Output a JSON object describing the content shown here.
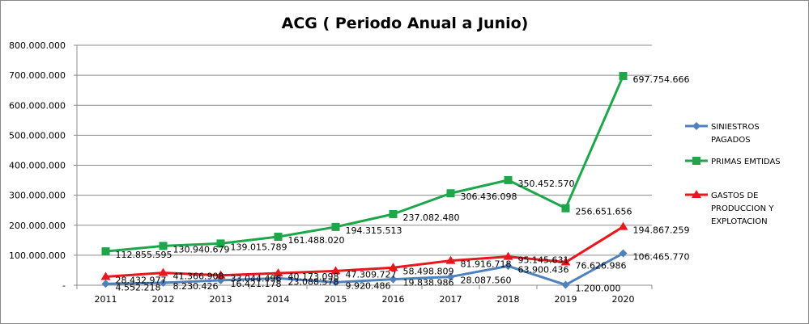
{
  "chart_data": {
    "type": "line",
    "title": "ACG ( Periodo Anual a Junio)",
    "xlabel": "",
    "ylabel": "",
    "categories": [
      "2011",
      "2012",
      "2013",
      "2014",
      "2015",
      "2016",
      "2017",
      "2018",
      "2019",
      "2020"
    ],
    "ylim": [
      0,
      800000000
    ],
    "yticks": [
      {
        "value": 0,
        "label": "-"
      },
      {
        "value": 100000000,
        "label": "100.000.000"
      },
      {
        "value": 200000000,
        "label": "200.000.000"
      },
      {
        "value": 300000000,
        "label": "300.000.000"
      },
      {
        "value": 400000000,
        "label": "400.000.000"
      },
      {
        "value": 500000000,
        "label": "500.000.000"
      },
      {
        "value": 600000000,
        "label": "600.000.000"
      },
      {
        "value": 700000000,
        "label": "700.000.000"
      },
      {
        "value": 800000000,
        "label": "800.000.000"
      }
    ],
    "grid": true,
    "legend_position": "right",
    "series": [
      {
        "name": "SINIESTROS PAGADOS",
        "legend_lines": [
          "SINIESTROS",
          "PAGADOS"
        ],
        "color": "#4F81BD",
        "marker": "diamond",
        "values": [
          4552218,
          8230426,
          16421178,
          23088578,
          9920486,
          19838986,
          28087560,
          63900436,
          1200000,
          106465770
        ],
        "labels": [
          "4.552.218",
          "8.230.426",
          "16.421.178",
          "23.088.578",
          "9.920.486",
          "19.838.986",
          "28.087.560",
          "63.900.436",
          "1.200.000",
          "106.465.770"
        ]
      },
      {
        "name": "PRIMAS EMTIDAS",
        "legend_lines": [
          "PRIMAS EMTIDAS"
        ],
        "color": "#1EA64A",
        "marker": "square",
        "values": [
          112855595,
          130940679,
          139015789,
          161488020,
          194315513,
          237082480,
          306436098,
          350452570,
          256651656,
          697754666
        ],
        "labels": [
          "112.855.595",
          "130.940.679",
          "139.015.789",
          "161.488.020",
          "194.315.513",
          "237.082.480",
          "306.436.098",
          "350.452.570",
          "256.651.656",
          "697.754.666"
        ]
      },
      {
        "name": "GASTOS DE PRODUCCION Y EXPLOTACION",
        "legend_lines": [
          "GASTOS DE",
          "PRODUCCION Y",
          "EXPLOTACION"
        ],
        "color": "#E8161D",
        "marker": "triangle",
        "values": [
          28432977,
          41366908,
          33044496,
          40173098,
          47309727,
          58498809,
          81916718,
          95145631,
          76626986,
          194867259
        ],
        "labels": [
          "28.432.977",
          "41.366.908",
          "33.044.496",
          "40.173.098",
          "47.309.727",
          "58.498.809",
          "81.916.718",
          "95.145.631",
          "76.626.986",
          "194.867.259"
        ]
      }
    ]
  }
}
